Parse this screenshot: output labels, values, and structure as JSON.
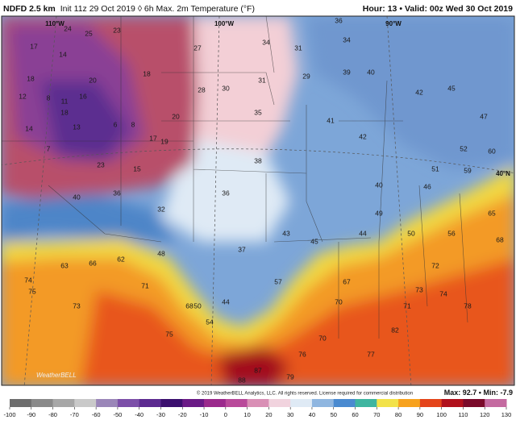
{
  "header": {
    "model": "NDFD 2.5 km",
    "description": "Init 11z 29 Oct 2019 ◊ 6h Max. 2m Temperature (°F)",
    "hour_label": "Hour:",
    "hour": "13",
    "valid_label": "Valid:",
    "valid": "00z Wed 30 Oct 2019"
  },
  "map": {
    "grid_labels": [
      "110°W",
      "100°W",
      "90°W",
      "40°N"
    ],
    "logo": "WeatherBELL",
    "stations": [
      25,
      23,
      17,
      14,
      18,
      20,
      18,
      12,
      8,
      11,
      16,
      18,
      14,
      13,
      6,
      8,
      17,
      19,
      20,
      7,
      15,
      23,
      24,
      27,
      28,
      30,
      31,
      35,
      34,
      31,
      34,
      36,
      29,
      39,
      40,
      41,
      42,
      40,
      44,
      38,
      36,
      37,
      43,
      45,
      49,
      42,
      45,
      47,
      52,
      60,
      59,
      51,
      46,
      63,
      62,
      66,
      71,
      73,
      75,
      68,
      57,
      67,
      72,
      73,
      74,
      78,
      82,
      77,
      79,
      87,
      88,
      76,
      70,
      70,
      71,
      75,
      74,
      40,
      36,
      32,
      44,
      50,
      54,
      48,
      50,
      56,
      65,
      68
    ]
  },
  "footer": {
    "copyright": "© 2019 WeatherBELL Analytics, LLC. All rights reserved. License required for commercial distribution",
    "max_label": "Max:",
    "max": 92.7,
    "min_label": "Min:",
    "min": -7.9
  },
  "colorbar": {
    "ticks": [
      -100,
      -90,
      -80,
      -70,
      -60,
      -50,
      -40,
      -30,
      -20,
      -10,
      0,
      10,
      20,
      30,
      40,
      50,
      60,
      70,
      80,
      90,
      100,
      110,
      120,
      130
    ],
    "colors": [
      "#6e6e6e",
      "#8a8a8a",
      "#a7a7a7",
      "#c9c9c9",
      "#9a86b8",
      "#7c4fa8",
      "#5c2a90",
      "#3b0f6e",
      "#6a1a86",
      "#9b2a8c",
      "#b94a9a",
      "#d98fb5",
      "#f1d3de",
      "#dfeaf5",
      "#8fb6e0",
      "#4a8ad0",
      "#3fb5a0",
      "#f2e24a",
      "#f7a21e",
      "#e4441a",
      "#b0101c",
      "#7a0a2a",
      "#c46aa0"
    ]
  }
}
